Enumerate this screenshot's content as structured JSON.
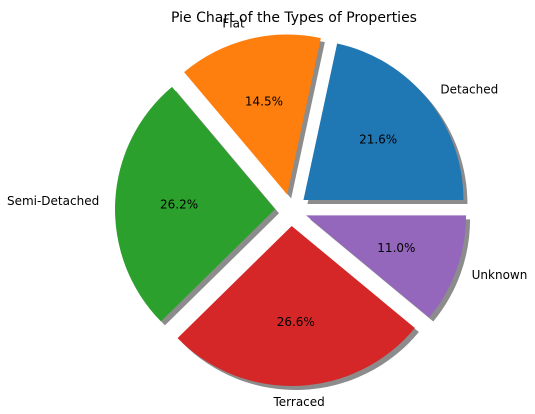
{
  "chart_data": {
    "type": "pie",
    "title": "Pie Chart of the Types of Properties",
    "categories": [
      "Detached",
      "Flat",
      "Semi-Detached",
      "Terraced",
      "Unknown"
    ],
    "values": [
      21.6,
      14.5,
      26.2,
      26.6,
      11.0
    ],
    "value_labels": [
      "21.6%",
      "14.5%",
      "26.2%",
      "26.6%",
      "11.0%"
    ],
    "colors": [
      "#1f77b4",
      "#ff7f0e",
      "#2ca02c",
      "#d62728",
      "#9467bd"
    ],
    "exploded": true,
    "shadow": true,
    "start_angle_deg": 0,
    "direction": "counterclockwise",
    "legend": "none"
  }
}
